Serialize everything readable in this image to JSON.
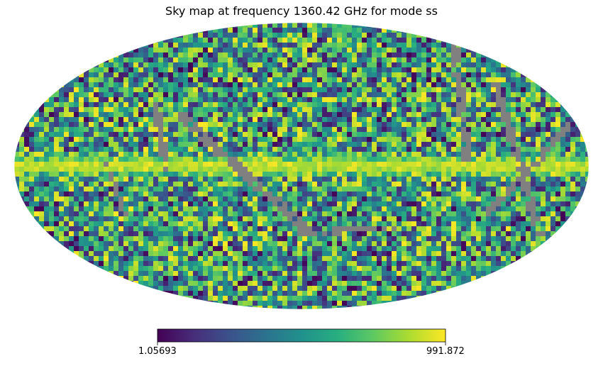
{
  "chart_data": {
    "type": "heatmap",
    "projection": "mollweide",
    "title": "Sky map at frequency 1360.42 GHz for mode ss",
    "colormap": "viridis",
    "colorbar": {
      "min": 1.05693,
      "max": 991.872,
      "min_label": "1.05693",
      "max_label": "991.872",
      "orientation": "horizontal",
      "placement": "bottom"
    },
    "masked_color": "#808080",
    "features": [
      "bright galactic plane band along the equator at high values",
      "grey masked stripes (unobserved scan regions) crossing the map",
      "noisy pixelized background across the full sky"
    ]
  }
}
